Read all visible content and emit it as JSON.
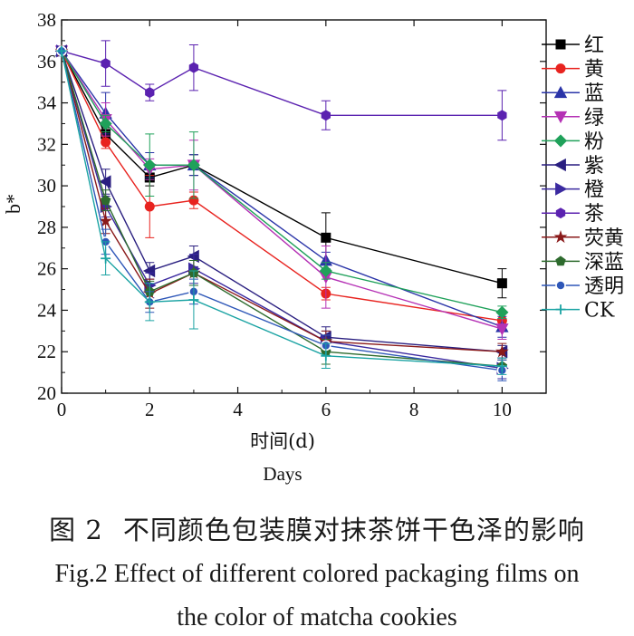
{
  "chart_data": {
    "type": "line",
    "ylabel": "b*",
    "xlabel_cn": "时间(d)",
    "xlabel_en": "Days",
    "xlim": [
      0,
      11
    ],
    "ylim": [
      20,
      38
    ],
    "xticks": [
      0,
      2,
      4,
      6,
      8,
      10
    ],
    "yticks": [
      20,
      22,
      24,
      26,
      28,
      30,
      32,
      34,
      36,
      38
    ],
    "x": [
      0,
      1,
      2,
      3,
      6,
      10
    ],
    "legend_position": "right",
    "series": [
      {
        "name": "红",
        "color": "#000000",
        "marker": "square",
        "values": [
          36.5,
          32.5,
          30.4,
          31.0,
          27.5,
          25.3
        ],
        "errors": [
          0,
          0.3,
          0.4,
          0.5,
          1.2,
          0.7
        ]
      },
      {
        "name": "黄",
        "color": "#e8231f",
        "marker": "circle",
        "values": [
          36.5,
          32.1,
          29.0,
          29.3,
          24.8,
          23.5
        ],
        "errors": [
          0,
          0.3,
          1.5,
          0.4,
          0.3,
          0.4
        ]
      },
      {
        "name": "蓝",
        "color": "#2a34a8",
        "marker": "triangle-up",
        "values": [
          36.5,
          33.5,
          31.0,
          31.0,
          26.4,
          23.2
        ],
        "errors": [
          0,
          1.0,
          0.6,
          0.5,
          0.4,
          0.5
        ]
      },
      {
        "name": "绿",
        "color": "#b531b5",
        "marker": "triangle-down",
        "values": [
          36.5,
          33.2,
          30.8,
          31.0,
          25.6,
          23.1
        ],
        "errors": [
          0,
          0.8,
          0.5,
          1.2,
          1.5,
          0.5
        ]
      },
      {
        "name": "粉",
        "color": "#1fa15a",
        "marker": "diamond",
        "values": [
          36.5,
          33.0,
          31.0,
          31.0,
          25.9,
          23.9
        ],
        "errors": [
          0,
          0.4,
          1.5,
          1.6,
          0.4,
          0.3
        ]
      },
      {
        "name": "紫",
        "color": "#2a1f80",
        "marker": "triangle-left",
        "values": [
          36.5,
          30.2,
          25.9,
          26.6,
          22.7,
          22.0
        ],
        "errors": [
          0,
          0.6,
          0.4,
          0.5,
          0.5,
          0.3
        ]
      },
      {
        "name": "橙",
        "color": "#3b2aa0",
        "marker": "triangle-right",
        "values": [
          36.5,
          29.0,
          25.2,
          26.0,
          22.5,
          21.2
        ],
        "errors": [
          0,
          0.5,
          0.6,
          0.7,
          0.5,
          0.5
        ]
      },
      {
        "name": "茶",
        "color": "#5b22b0",
        "marker": "hexagon",
        "values": [
          36.5,
          35.9,
          34.5,
          35.7,
          33.4,
          33.4
        ],
        "errors": [
          0,
          1.1,
          0.4,
          1.1,
          0.7,
          1.2
        ]
      },
      {
        "name": "荧黄",
        "color": "#8a1a1a",
        "marker": "star",
        "values": [
          36.5,
          28.3,
          24.8,
          25.8,
          22.5,
          22.0
        ],
        "errors": [
          0,
          0.6,
          0.7,
          0.6,
          0.5,
          0.4
        ]
      },
      {
        "name": "深蓝",
        "color": "#2e6b2e",
        "marker": "pentagon",
        "values": [
          36.5,
          29.3,
          24.9,
          25.8,
          22.0,
          21.3
        ],
        "errors": [
          0,
          0.5,
          0.5,
          0.6,
          0.6,
          0.3
        ]
      },
      {
        "name": "透明",
        "color": "#2e57b8",
        "marker": "circle-ring",
        "values": [
          36.5,
          27.3,
          24.4,
          24.9,
          22.3,
          21.1
        ],
        "errors": [
          0,
          0.6,
          0.5,
          0.6,
          0.5,
          0.5
        ]
      },
      {
        "name": "CK",
        "color": "#1aa3a3",
        "marker": "plus",
        "values": [
          36.5,
          26.5,
          24.4,
          24.5,
          21.8,
          21.3
        ],
        "errors": [
          0,
          0.8,
          0.9,
          1.4,
          0.6,
          0.4
        ]
      }
    ]
  },
  "caption": {
    "cn_label": "图 2",
    "cn_text": "不同颜色包装膜对抹茶饼干色泽的影响",
    "en_line1": "Fig.2 Effect of different colored packaging films on",
    "en_line2": "the color of matcha cookies"
  }
}
